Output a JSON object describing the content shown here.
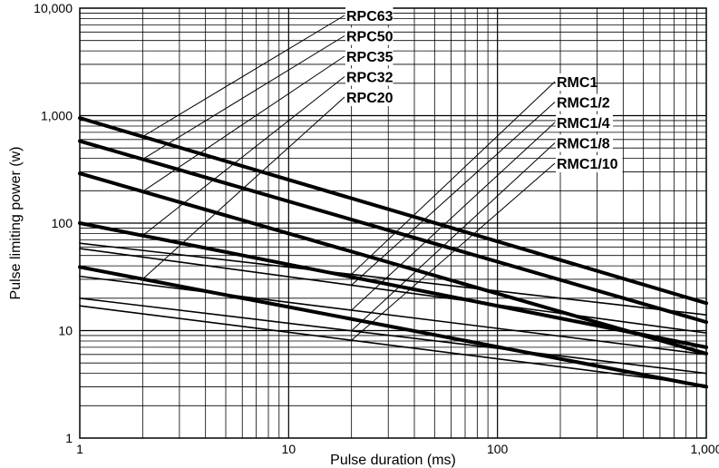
{
  "chart_data": {
    "type": "line",
    "title": "",
    "xlabel": "Pulse duration (ms)",
    "ylabel": "Pulse limiting power (w)",
    "x_scale": "log",
    "y_scale": "log",
    "xlim": [
      1,
      1000
    ],
    "ylim": [
      1,
      10000
    ],
    "grid": true,
    "x_ticks": [
      "1",
      "10",
      "100",
      "1,000"
    ],
    "y_ticks": [
      "1",
      "10",
      "100",
      "1,000",
      "10,000"
    ],
    "series": [
      {
        "name": "RPC63",
        "x": [
          1,
          1000
        ],
        "y": [
          950,
          18
        ],
        "weight": "bold"
      },
      {
        "name": "RPC50",
        "x": [
          1,
          1000
        ],
        "y": [
          580,
          12
        ],
        "weight": "bold"
      },
      {
        "name": "RPC35",
        "x": [
          1,
          1000
        ],
        "y": [
          290,
          6.1
        ],
        "weight": "bold"
      },
      {
        "name": "RPC32",
        "x": [
          1,
          1000
        ],
        "y": [
          100,
          7
        ],
        "weight": "bold"
      },
      {
        "name": "RPC20",
        "x": [
          1,
          1000
        ],
        "y": [
          39,
          3
        ],
        "weight": "bold"
      },
      {
        "name": "RMC1",
        "x": [
          1,
          1000
        ],
        "y": [
          65,
          14
        ],
        "weight": "thin"
      },
      {
        "name": "RMC1/2",
        "x": [
          1,
          1000
        ],
        "y": [
          58,
          9.5
        ],
        "weight": "thin"
      },
      {
        "name": "RMC1/4",
        "x": [
          1,
          1000
        ],
        "y": [
          32,
          6
        ],
        "weight": "thin"
      },
      {
        "name": "RMC1/8",
        "x": [
          1,
          1000
        ],
        "y": [
          20,
          4
        ],
        "weight": "thin"
      },
      {
        "name": "RMC1/10",
        "x": [
          1,
          1000
        ],
        "y": [
          17,
          3.1
        ],
        "weight": "thin"
      }
    ]
  }
}
